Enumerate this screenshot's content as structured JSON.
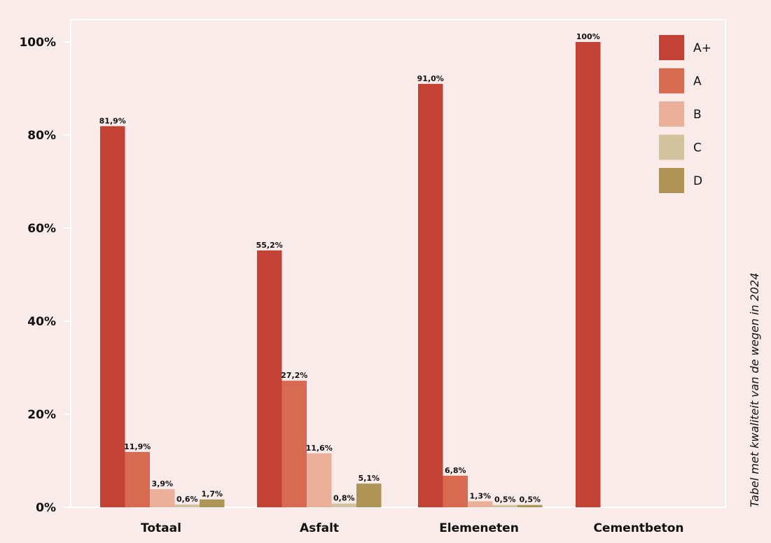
{
  "chart_data": {
    "type": "bar",
    "categories": [
      "Totaal",
      "Asfalt",
      "Elemeneten",
      "Cementbeton"
    ],
    "series": [
      {
        "name": "A+",
        "color": "#c44135",
        "values": [
          81.9,
          55.2,
          91.0,
          100
        ],
        "labels": [
          "81,9%",
          "55,2%",
          "91,0%",
          "100%"
        ]
      },
      {
        "name": "A",
        "color": "#d86a51",
        "values": [
          11.9,
          27.2,
          6.8,
          null
        ],
        "labels": [
          "11,9%",
          "27,2%",
          "6,8%",
          ""
        ]
      },
      {
        "name": "B",
        "color": "#eab09a",
        "values": [
          3.9,
          11.6,
          1.3,
          null
        ],
        "labels": [
          "3,9%",
          "11,6%",
          "1,3%",
          ""
        ]
      },
      {
        "name": "C",
        "color": "#d4c29f",
        "values": [
          0.6,
          0.8,
          0.5,
          null
        ],
        "labels": [
          "0,6%",
          "0,8%",
          "0,5%",
          ""
        ]
      },
      {
        "name": "D",
        "color": "#ae9555",
        "values": [
          1.7,
          5.1,
          0.5,
          null
        ],
        "labels": [
          "1,7%",
          "5,1%",
          "0,5%",
          ""
        ]
      }
    ],
    "yticks": [
      0,
      20,
      40,
      60,
      80,
      100
    ],
    "ytick_labels": [
      "0%",
      "20%",
      "40%",
      "60%",
      "80%",
      "100%"
    ],
    "ylim": [
      0,
      100
    ],
    "grid": false,
    "legend_position": "top-right",
    "side_note": "Tabel met kwaliteit van de wegen in 2024"
  }
}
